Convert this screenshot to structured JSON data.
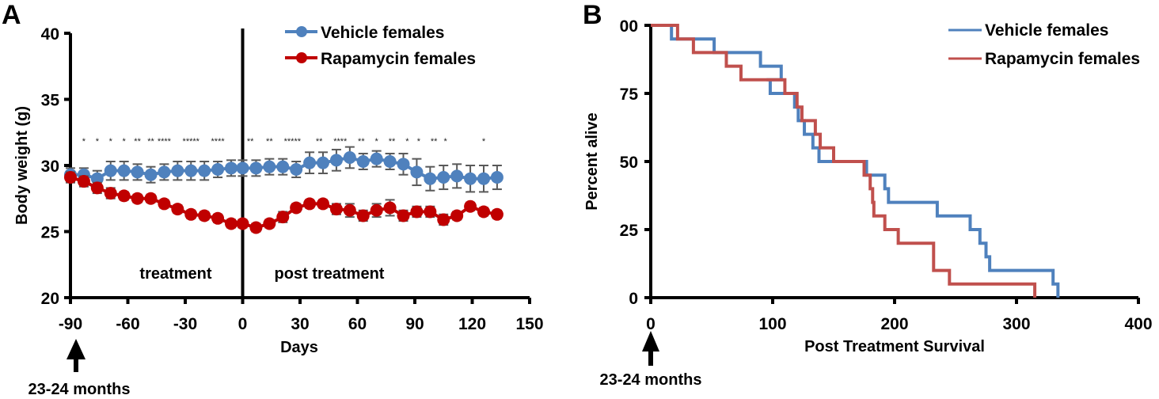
{
  "chart_data": [
    {
      "panel_label": "A",
      "type": "line",
      "xlabel": "Days",
      "ylabel": "Body weight (g)",
      "xlim": [
        -90,
        150
      ],
      "ylim": [
        20,
        40
      ],
      "xticks": [
        "-90",
        "-60",
        "-30",
        "0",
        "30",
        "60",
        "90",
        "120",
        "150"
      ],
      "yticks": [
        "20",
        "25",
        "30",
        "35",
        "40"
      ],
      "x": [
        -90,
        -83,
        -76,
        -69,
        -62,
        -55,
        -48,
        -41,
        -34,
        -27,
        -20,
        -13,
        -6,
        0,
        7,
        14,
        21,
        28,
        35,
        42,
        49,
        56,
        63,
        70,
        77,
        84,
        91,
        98,
        105,
        112,
        119,
        126,
        133
      ],
      "series": [
        {
          "name": "Vehicle females",
          "color": "#4F81BD",
          "values": [
            29.3,
            29.3,
            29.0,
            29.6,
            29.6,
            29.5,
            29.3,
            29.5,
            29.6,
            29.6,
            29.6,
            29.7,
            29.8,
            29.8,
            29.8,
            29.9,
            29.9,
            29.7,
            30.2,
            30.2,
            30.4,
            30.6,
            30.3,
            30.5,
            30.3,
            30.1,
            29.5,
            29.0,
            29.1,
            29.2,
            29.0,
            29.0,
            29.1
          ],
          "error": [
            0.5,
            0.5,
            0.6,
            0.7,
            0.7,
            0.6,
            0.6,
            0.6,
            0.7,
            0.7,
            0.7,
            0.6,
            0.6,
            0.6,
            0.6,
            0.6,
            0.6,
            0.6,
            0.8,
            0.8,
            0.8,
            0.8,
            0.6,
            0.6,
            0.6,
            0.8,
            1.0,
            0.9,
            0.9,
            0.9,
            1.0,
            1.0,
            0.9
          ]
        },
        {
          "name": "Rapamycin females",
          "color": "#C00000",
          "values": [
            29.1,
            28.8,
            28.3,
            27.9,
            27.7,
            27.5,
            27.5,
            27.1,
            26.7,
            26.3,
            26.2,
            26.0,
            25.6,
            25.6,
            25.3,
            25.6,
            26.1,
            26.8,
            27.1,
            27.1,
            26.7,
            26.6,
            26.2,
            26.6,
            26.8,
            26.2,
            26.5,
            26.5,
            25.9,
            26.2,
            26.9,
            26.5,
            26.3
          ],
          "error": [
            0.4,
            0.4,
            0.4,
            0.4,
            0.3,
            0.3,
            0.3,
            0.3,
            0.3,
            0.3,
            0.3,
            0.3,
            0.3,
            0.3,
            0.3,
            0.3,
            0.4,
            0.3,
            0.3,
            0.3,
            0.4,
            0.5,
            0.4,
            0.5,
            0.6,
            0.4,
            0.4,
            0.4,
            0.4,
            0.3,
            0.3,
            0.3,
            0.3
          ]
        }
      ],
      "significance_marks": [
        {
          "x": -83,
          "text": "*"
        },
        {
          "x": -76,
          "text": "*"
        },
        {
          "x": -69,
          "text": "*"
        },
        {
          "x": -62,
          "text": "*"
        },
        {
          "x": -55,
          "text": "**"
        },
        {
          "x": -48,
          "text": "**"
        },
        {
          "x": -41,
          "text": "****"
        },
        {
          "x": -27,
          "text": "*****"
        },
        {
          "x": -13,
          "text": "****"
        },
        {
          "x": 4,
          "text": "**"
        },
        {
          "x": 14,
          "text": "**"
        },
        {
          "x": 26,
          "text": "*****"
        },
        {
          "x": 40,
          "text": "**"
        },
        {
          "x": 51,
          "text": "****"
        },
        {
          "x": 62,
          "text": "**"
        },
        {
          "x": 70,
          "text": "*"
        },
        {
          "x": 78,
          "text": "**"
        },
        {
          "x": 86,
          "text": "*"
        },
        {
          "x": 92,
          "text": "*"
        },
        {
          "x": 100,
          "text": "**"
        },
        {
          "x": 106,
          "text": "*"
        },
        {
          "x": 126,
          "text": "*"
        }
      ],
      "annotations": [
        {
          "text": "treatment",
          "x": -30,
          "y": 22.2
        },
        {
          "text": "post treatment",
          "x": 70,
          "y": 22.2
        },
        {
          "text": "23-24 months",
          "x": -90,
          "arrow": true
        }
      ],
      "vertical_line_at": 0,
      "legend": "top-right"
    },
    {
      "panel_label": "B",
      "type": "line",
      "step": true,
      "xlabel": "Post Treatment Survival",
      "ylabel": "Percent alive",
      "xlim": [
        0,
        400
      ],
      "ylim": [
        0,
        100
      ],
      "xticks": [
        "0",
        "100",
        "200",
        "300",
        "400"
      ],
      "yticks": [
        "0",
        "25",
        "50",
        "75",
        "00"
      ],
      "series": [
        {
          "name": "Vehicle females",
          "color": "#4F81BD",
          "points": [
            [
              0,
              100
            ],
            [
              17,
              100
            ],
            [
              17,
              95
            ],
            [
              52,
              95
            ],
            [
              52,
              90
            ],
            [
              90,
              90
            ],
            [
              90,
              85
            ],
            [
              107,
              85
            ],
            [
              107,
              80
            ],
            [
              95,
              80
            ],
            [
              98,
              80
            ],
            [
              98,
              75
            ],
            [
              118,
              75
            ],
            [
              118,
              70
            ],
            [
              121,
              70
            ],
            [
              121,
              65
            ],
            [
              126,
              65
            ],
            [
              126,
              60
            ],
            [
              133,
              60
            ],
            [
              133,
              55
            ],
            [
              138,
              55
            ],
            [
              138,
              50
            ],
            [
              177,
              50
            ],
            [
              177,
              45
            ],
            [
              192,
              45
            ],
            [
              192,
              40
            ],
            [
              195,
              40
            ],
            [
              195,
              35
            ],
            [
              235,
              35
            ],
            [
              235,
              30
            ],
            [
              262,
              30
            ],
            [
              262,
              25
            ],
            [
              270,
              25
            ],
            [
              270,
              20
            ],
            [
              275,
              20
            ],
            [
              275,
              15
            ],
            [
              278,
              15
            ],
            [
              278,
              10
            ],
            [
              330,
              10
            ],
            [
              330,
              5
            ],
            [
              334,
              5
            ],
            [
              334,
              0
            ]
          ]
        },
        {
          "name": "Rapamycin females",
          "color": "#C0504D",
          "points": [
            [
              0,
              100
            ],
            [
              22,
              100
            ],
            [
              22,
              95
            ],
            [
              35,
              95
            ],
            [
              35,
              90
            ],
            [
              62,
              90
            ],
            [
              62,
              85
            ],
            [
              74,
              85
            ],
            [
              74,
              80
            ],
            [
              110,
              80
            ],
            [
              110,
              75
            ],
            [
              120,
              75
            ],
            [
              120,
              70
            ],
            [
              124,
              70
            ],
            [
              124,
              65
            ],
            [
              135,
              65
            ],
            [
              135,
              60
            ],
            [
              139,
              60
            ],
            [
              139,
              55
            ],
            [
              150,
              55
            ],
            [
              150,
              50
            ],
            [
              175,
              50
            ],
            [
              175,
              45
            ],
            [
              180,
              45
            ],
            [
              180,
              40
            ],
            [
              182,
              40
            ],
            [
              182,
              35
            ],
            [
              183,
              35
            ],
            [
              183,
              30
            ],
            [
              192,
              30
            ],
            [
              192,
              25
            ],
            [
              203,
              25
            ],
            [
              203,
              20
            ],
            [
              232,
              20
            ],
            [
              232,
              10
            ],
            [
              245,
              10
            ],
            [
              245,
              5
            ],
            [
              315,
              5
            ],
            [
              315,
              0
            ]
          ]
        }
      ],
      "annotations": [
        {
          "text": "23-24 months",
          "x": 0,
          "arrow": true
        }
      ],
      "legend": "top-right"
    }
  ],
  "panels": {
    "a": {
      "label": "A",
      "xlabel": "Days",
      "ylabel": "Body weight (g)",
      "treatment_label": "treatment",
      "post_label": "post treatment",
      "age_label": "23-24 months",
      "legend": [
        "Vehicle females",
        "Rapamycin females"
      ]
    },
    "b": {
      "label": "B",
      "xlabel": "Post Treatment Survival",
      "ylabel": "Percent alive",
      "age_label": "23-24 months",
      "legend": [
        "Vehicle females",
        "Rapamycin females"
      ]
    }
  }
}
